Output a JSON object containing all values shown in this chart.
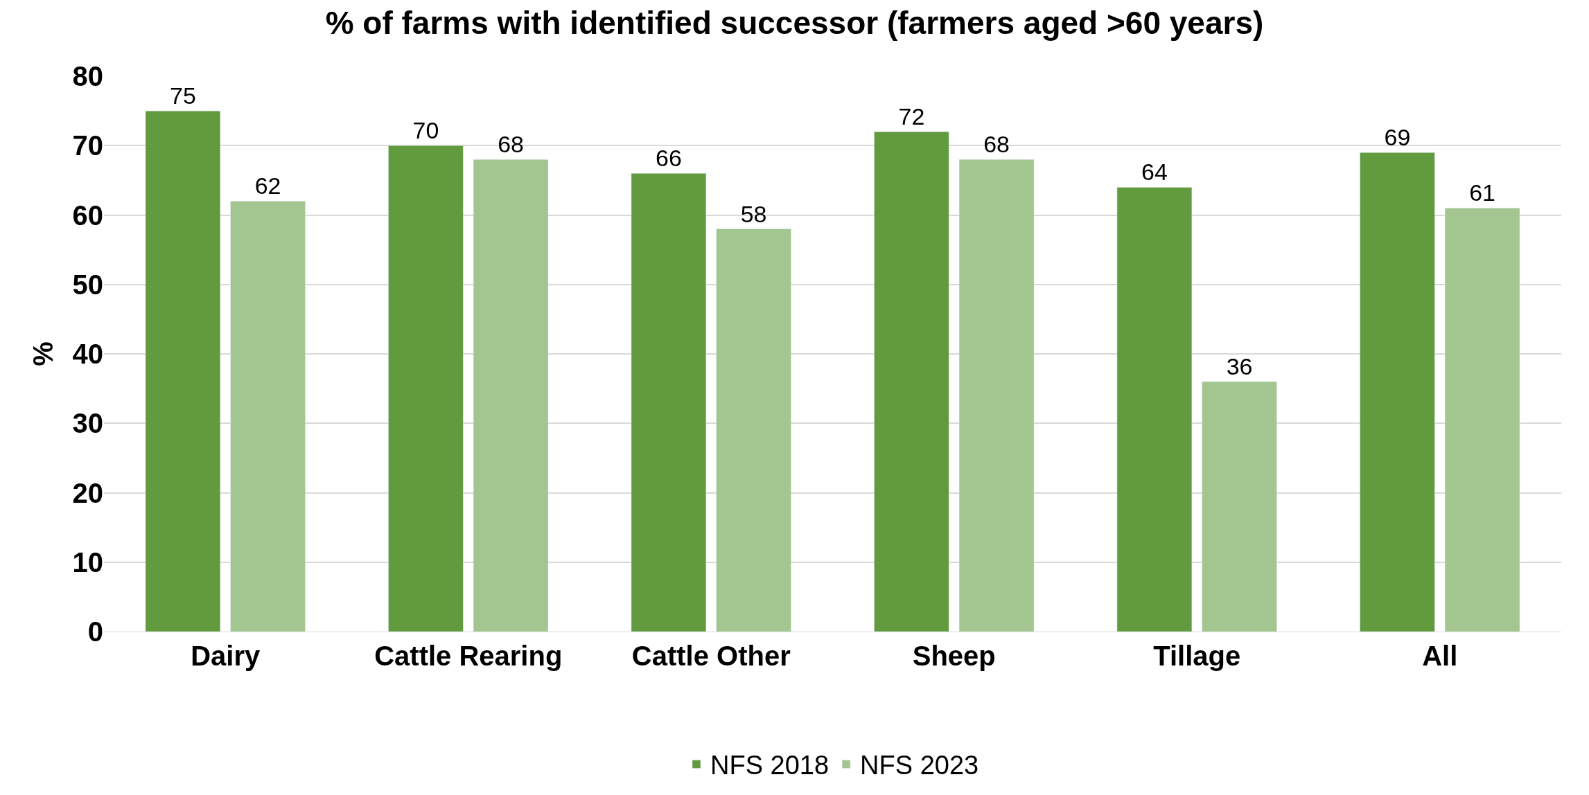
{
  "chart_data": {
    "type": "bar",
    "title": "% of farms with identified successor (farmers aged >60 years)",
    "ylabel": "%",
    "categories": [
      "Dairy",
      "Cattle Rearing",
      "Cattle Other",
      "Sheep",
      "Tillage",
      "All"
    ],
    "series": [
      {
        "name": "NFS 2018",
        "color": "#629a3e",
        "values": [
          75,
          70,
          66,
          72,
          64,
          69
        ]
      },
      {
        "name": "NFS 2023",
        "color": "#a3c58f",
        "values": [
          62,
          68,
          58,
          68,
          36,
          61
        ]
      }
    ],
    "ylim": [
      0,
      80
    ],
    "yticks": [
      0,
      10,
      20,
      30,
      40,
      50,
      60,
      70,
      80
    ],
    "grid": "y",
    "legend": "bottom",
    "data_labels": true
  }
}
